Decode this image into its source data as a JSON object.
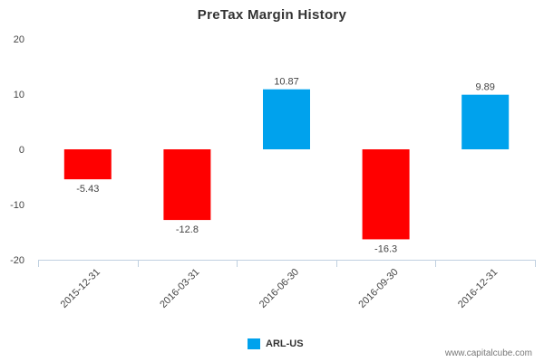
{
  "chart_data": {
    "type": "bar",
    "title": "PreTax Margin History",
    "categories": [
      "2015-12-31",
      "2016-03-31",
      "2016-06-30",
      "2016-09-30",
      "2016-12-31"
    ],
    "series": [
      {
        "name": "ARL-US",
        "values": [
          -5.43,
          -12.8,
          10.87,
          -16.3,
          9.89
        ]
      }
    ],
    "data_labels": [
      "-5.43",
      "-12.8",
      "10.87",
      "-16.3",
      "9.89"
    ],
    "ylim": [
      -20,
      20
    ],
    "yticks": [
      "20",
      "10",
      "0",
      "-10",
      "-20"
    ],
    "grid": false,
    "legend": "bottom-center",
    "colors": {
      "positive": "#00a2ed",
      "negative": "#ff0000"
    }
  },
  "watermark": "www.capitalcube.com"
}
